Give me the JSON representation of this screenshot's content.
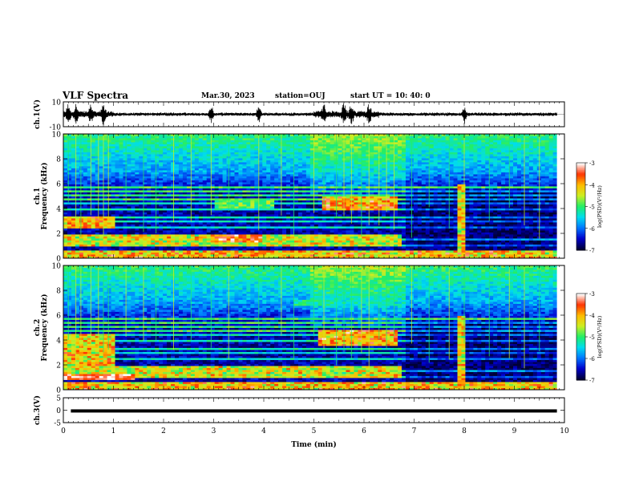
{
  "header": {
    "title": "VLF Spectra",
    "date": "Mar.30, 2023",
    "station": "station=OUJ",
    "start": "start UT =  10: 40: 0"
  },
  "colors": {
    "colormap": [
      "#000033",
      "#0000cc",
      "#0077ff",
      "#00ddee",
      "#22ee66",
      "#ccee22",
      "#ffbb00",
      "#ff3300",
      "#ffffff"
    ],
    "waveform": "#000000"
  },
  "chart_data": [
    {
      "type": "line",
      "ylabel": "ch.1(V)",
      "ylim": [
        -10,
        10
      ],
      "yticks": [
        "10",
        "-10"
      ],
      "xlim": [
        0,
        10
      ],
      "bursts_min": [
        0.1,
        0.25,
        0.55,
        0.8,
        2.95,
        3.9,
        5.2,
        5.6,
        5.75,
        6.1,
        8.0
      ]
    },
    {
      "type": "heatmap",
      "ylabel": "Frequency (kHz)",
      "channel_label": "ch.1",
      "ylim": [
        0,
        10
      ],
      "yticks": [
        "0",
        "2",
        "4",
        "6",
        "8",
        "10"
      ],
      "xlim": [
        0,
        10
      ],
      "colorbar": {
        "label": "log(PSD)(V²/Hz)",
        "min": -7,
        "max": -3,
        "ticks": [
          "-3",
          "-4",
          "-5",
          "-6",
          "-7"
        ]
      }
    },
    {
      "type": "heatmap",
      "ylabel": "Frequency (kHz)",
      "channel_label": "ch.2",
      "ylim": [
        0,
        10
      ],
      "yticks": [
        "0",
        "2",
        "4",
        "6",
        "8",
        "10"
      ],
      "xlim": [
        0,
        10
      ],
      "colorbar": {
        "label": "log(PSD)(V²/Hz)",
        "min": -7,
        "max": -3,
        "ticks": [
          "-3",
          "-4",
          "-5",
          "-6",
          "-7"
        ]
      }
    },
    {
      "type": "line",
      "ylabel": "ch.3(V)",
      "ylim": [
        -5,
        5
      ],
      "yticks": [
        "5",
        "0",
        "-5"
      ],
      "xlim": [
        0,
        10
      ],
      "level": -0.3
    }
  ],
  "xaxis": {
    "label": "Time (min)",
    "ticks": [
      "0",
      "1",
      "2",
      "3",
      "4",
      "5",
      "6",
      "7",
      "8",
      "9",
      "10"
    ],
    "data_end_min": 9.85
  }
}
